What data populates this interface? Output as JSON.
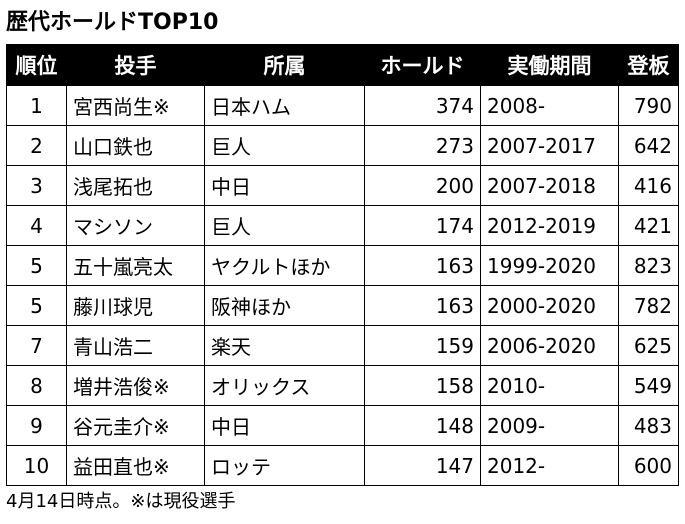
{
  "header": {
    "title": "歴代ホールドTOP10"
  },
  "table": {
    "columns": [
      "順位",
      "投手",
      "所属",
      "ホールド",
      "実働期間",
      "登板"
    ],
    "rows": [
      [
        1,
        "宮西尚生※",
        "日本ハム",
        374,
        "2008-",
        790
      ],
      [
        2,
        "山口鉄也",
        "巨人",
        273,
        "2007-2017",
        642
      ],
      [
        3,
        "浅尾拓也",
        "中日",
        200,
        "2007-2018",
        416
      ],
      [
        4,
        "マシソン",
        "巨人",
        174,
        "2012-2019",
        421
      ],
      [
        5,
        "五十嵐亮太",
        "ヤクルトほか",
        163,
        "1999-2020",
        823
      ],
      [
        5,
        "藤川球児",
        "阪神ほか",
        163,
        "2000-2020",
        782
      ],
      [
        7,
        "青山浩二",
        "楽天",
        159,
        "2006-2020",
        625
      ],
      [
        8,
        "増井浩俊※",
        "オリックス",
        158,
        "2010-",
        549
      ],
      [
        9,
        "谷元圭介※",
        "中日",
        148,
        "2009-",
        483
      ],
      [
        10,
        "益田直也※",
        "ロッテ",
        147,
        "2012-",
        600
      ]
    ]
  },
  "footer": {
    "note": "4月14日時点。※は現役選手"
  }
}
